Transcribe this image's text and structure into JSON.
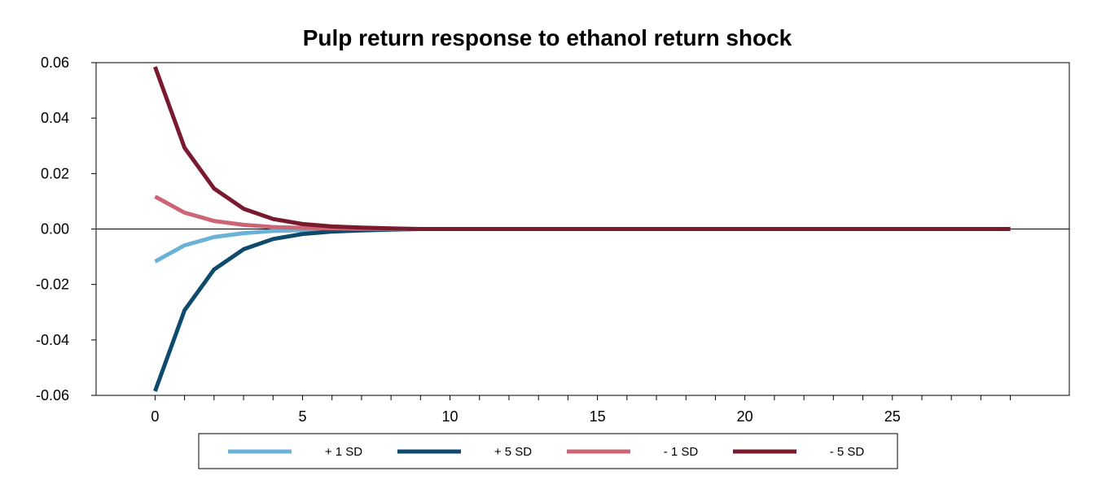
{
  "chart_data": {
    "type": "line",
    "title": "Pulp return response to ethanol return shock",
    "xlabel": "",
    "ylabel": "",
    "xlim": [
      -2,
      31
    ],
    "ylim": [
      -0.06,
      0.06
    ],
    "x_ticks": [
      0,
      5,
      10,
      15,
      20,
      25
    ],
    "y_ticks": [
      0.06,
      0.04,
      0.02,
      0.0,
      -0.02,
      -0.04,
      -0.06
    ],
    "y_tick_labels": [
      "0.06",
      "0.04",
      "0.02",
      "0.00",
      "-0.02",
      "-0.04",
      "-0.06"
    ],
    "x_tick_labels": [
      "0",
      "5",
      "10",
      "15",
      "20",
      "25"
    ],
    "grid": false,
    "legend_position": "bottom",
    "x": [
      0,
      1,
      2,
      3,
      4,
      5,
      6,
      7,
      8,
      9,
      10,
      11,
      12,
      13,
      14,
      15,
      16,
      17,
      18,
      19,
      20,
      21,
      22,
      23,
      24,
      25,
      26,
      27,
      28,
      29
    ],
    "series": [
      {
        "name": "+ 1 SD",
        "color": "#6BB3D6",
        "values": [
          -0.0117,
          -0.0059,
          -0.0029,
          -0.0015,
          -0.0007,
          -0.0004,
          -0.0002,
          -0.0001,
          0,
          0,
          0,
          0,
          0,
          0,
          0,
          0,
          0,
          0,
          0,
          0,
          0,
          0,
          0,
          0,
          0,
          0,
          0,
          0,
          0,
          0
        ]
      },
      {
        "name": "+ 5 SD",
        "color": "#0E4A6B",
        "values": [
          -0.0585,
          -0.0293,
          -0.0146,
          -0.0073,
          -0.0036,
          -0.0018,
          -0.0009,
          -0.0005,
          -0.0002,
          0,
          0,
          0,
          0,
          0,
          0,
          0,
          0,
          0,
          0,
          0,
          0,
          0,
          0,
          0,
          0,
          0,
          0,
          0,
          0,
          0
        ]
      },
      {
        "name": "- 1 SD",
        "color": "#CC6675",
        "values": [
          0.0117,
          0.0059,
          0.0029,
          0.0015,
          0.0007,
          0.0004,
          0.0002,
          0.0001,
          0,
          0,
          0,
          0,
          0,
          0,
          0,
          0,
          0,
          0,
          0,
          0,
          0,
          0,
          0,
          0,
          0,
          0,
          0,
          0,
          0,
          0
        ]
      },
      {
        "name": "- 5 SD",
        "color": "#7A1A2E",
        "values": [
          0.0585,
          0.0293,
          0.0146,
          0.0073,
          0.0036,
          0.0018,
          0.0009,
          0.0005,
          0.0002,
          0,
          0,
          0,
          0,
          0,
          0,
          0,
          0,
          0,
          0,
          0,
          0,
          0,
          0,
          0,
          0,
          0,
          0,
          0,
          0,
          0
        ]
      }
    ]
  }
}
